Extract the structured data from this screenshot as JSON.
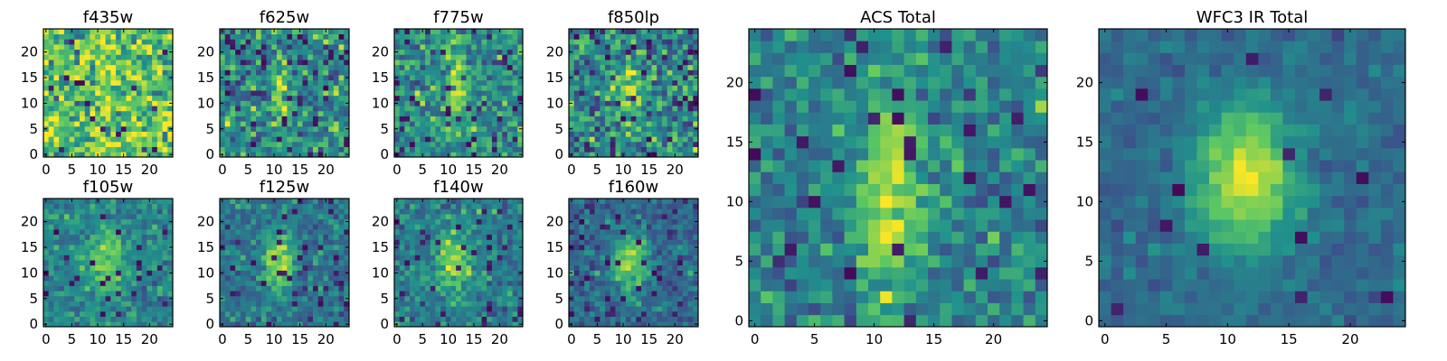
{
  "figure": {
    "colormap": "viridis",
    "colormap_stops": [
      "#440154",
      "#3b528b",
      "#21918c",
      "#5ec962",
      "#fde725"
    ],
    "axis_frame_color": "#000000"
  },
  "chart_data": [
    {
      "type": "heatmap",
      "title": "f435w",
      "grid": false,
      "size": [
        25,
        25
      ],
      "xlim": [
        -0.5,
        24.5
      ],
      "ylim": [
        -0.5,
        24.5
      ],
      "xticks": [
        0,
        5,
        10,
        15,
        20
      ],
      "yticks": [
        0,
        5,
        10,
        15,
        20
      ],
      "source": {
        "cx": 12,
        "cy": 11,
        "sx": 2.5,
        "sy": 5,
        "amp": 0.05,
        "noise": 0.3,
        "base": 0.72,
        "seed": 11,
        "dark_fraction": 0.03
      }
    },
    {
      "type": "heatmap",
      "title": "f625w",
      "grid": false,
      "size": [
        25,
        25
      ],
      "xlim": [
        -0.5,
        24.5
      ],
      "ylim": [
        -0.5,
        24.5
      ],
      "xticks": [
        0,
        5,
        10,
        15,
        20
      ],
      "yticks": [
        0,
        5,
        10,
        15,
        20
      ],
      "source": {
        "cx": 11.5,
        "cy": 12,
        "sx": 1.5,
        "sy": 5,
        "amp": 0.35,
        "noise": 0.28,
        "base": 0.45,
        "seed": 23,
        "dark_fraction": 0.04
      }
    },
    {
      "type": "heatmap",
      "title": "f775w",
      "grid": false,
      "size": [
        25,
        25
      ],
      "xlim": [
        -0.5,
        24.5
      ],
      "ylim": [
        -0.5,
        24.5
      ],
      "xticks": [
        0,
        5,
        10,
        15,
        20
      ],
      "yticks": [
        0,
        5,
        10,
        15,
        20
      ],
      "source": {
        "cx": 11.5,
        "cy": 12.5,
        "sx": 1.6,
        "sy": 5,
        "amp": 0.4,
        "noise": 0.25,
        "base": 0.48,
        "seed": 37,
        "dark_fraction": 0.03
      }
    },
    {
      "type": "heatmap",
      "title": "f850lp",
      "grid": false,
      "size": [
        25,
        25
      ],
      "xlim": [
        -0.5,
        24.5
      ],
      "ylim": [
        -0.5,
        24.5
      ],
      "xticks": [
        0,
        5,
        10,
        15,
        20
      ],
      "yticks": [
        0,
        5,
        10,
        15,
        20
      ],
      "source": {
        "cx": 11,
        "cy": 11,
        "sx": 1.8,
        "sy": 5,
        "amp": 0.4,
        "noise": 0.3,
        "base": 0.45,
        "seed": 41,
        "dark_fraction": 0.05
      }
    },
    {
      "type": "heatmap",
      "title": "f105w",
      "grid": false,
      "size": [
        25,
        25
      ],
      "xlim": [
        -0.5,
        24.5
      ],
      "ylim": [
        -0.5,
        24.5
      ],
      "xticks": [
        0,
        5,
        10,
        15,
        20
      ],
      "yticks": [
        0,
        5,
        10,
        15,
        20
      ],
      "source": {
        "cx": 11.5,
        "cy": 12,
        "sx": 2.5,
        "sy": 4.5,
        "amp": 0.35,
        "noise": 0.16,
        "base": 0.45,
        "seed": 53,
        "dark_fraction": 0.03
      }
    },
    {
      "type": "heatmap",
      "title": "f125w",
      "grid": false,
      "size": [
        25,
        25
      ],
      "xlim": [
        -0.5,
        24.5
      ],
      "ylim": [
        -0.5,
        24.5
      ],
      "xticks": [
        0,
        5,
        10,
        15,
        20
      ],
      "yticks": [
        0,
        5,
        10,
        15,
        20
      ],
      "source": {
        "cx": 11,
        "cy": 12,
        "sx": 2.2,
        "sy": 4,
        "amp": 0.5,
        "noise": 0.17,
        "base": 0.38,
        "seed": 67,
        "dark_fraction": 0.04
      }
    },
    {
      "type": "heatmap",
      "title": "f140w",
      "grid": false,
      "size": [
        25,
        25
      ],
      "xlim": [
        -0.5,
        24.5
      ],
      "ylim": [
        -0.5,
        24.5
      ],
      "xticks": [
        0,
        5,
        10,
        15,
        20
      ],
      "yticks": [
        0,
        5,
        10,
        15,
        20
      ],
      "source": {
        "cx": 11,
        "cy": 12,
        "sx": 2.5,
        "sy": 4,
        "amp": 0.4,
        "noise": 0.18,
        "base": 0.42,
        "seed": 79,
        "dark_fraction": 0.04
      }
    },
    {
      "type": "heatmap",
      "title": "f160w",
      "grid": false,
      "size": [
        25,
        25
      ],
      "xlim": [
        -0.5,
        24.5
      ],
      "ylim": [
        -0.5,
        24.5
      ],
      "xticks": [
        0,
        5,
        10,
        15,
        20
      ],
      "yticks": [
        0,
        5,
        10,
        15,
        20
      ],
      "source": {
        "cx": 11.5,
        "cy": 12,
        "sx": 2.3,
        "sy": 3.8,
        "amp": 0.55,
        "noise": 0.16,
        "base": 0.33,
        "seed": 97,
        "dark_fraction": 0.05
      }
    },
    {
      "type": "heatmap",
      "title": "ACS Total",
      "grid": false,
      "size": [
        25,
        25
      ],
      "xlim": [
        -0.5,
        24.5
      ],
      "ylim": [
        -0.5,
        24.5
      ],
      "xticks": [
        0,
        5,
        10,
        15,
        20
      ],
      "yticks": [
        0,
        5,
        10,
        15,
        20
      ],
      "source": {
        "cx": 11.5,
        "cy": 11,
        "sx": 1.8,
        "sy": 6,
        "amp": 0.45,
        "noise": 0.2,
        "base": 0.45,
        "seed": 101,
        "dark_fraction": 0.05
      }
    },
    {
      "type": "heatmap",
      "title": "WFC3 IR Total",
      "grid": false,
      "size": [
        25,
        25
      ],
      "xlim": [
        -0.5,
        24.5
      ],
      "ylim": [
        -0.5,
        24.5
      ],
      "xticks": [
        0,
        5,
        10,
        15,
        20
      ],
      "yticks": [
        0,
        5,
        10,
        15,
        20
      ],
      "source": {
        "cx": 11.5,
        "cy": 12,
        "sx": 2.8,
        "sy": 4.2,
        "amp": 0.6,
        "noise": 0.09,
        "base": 0.35,
        "seed": 113,
        "dark_fraction": 0.02
      }
    }
  ]
}
